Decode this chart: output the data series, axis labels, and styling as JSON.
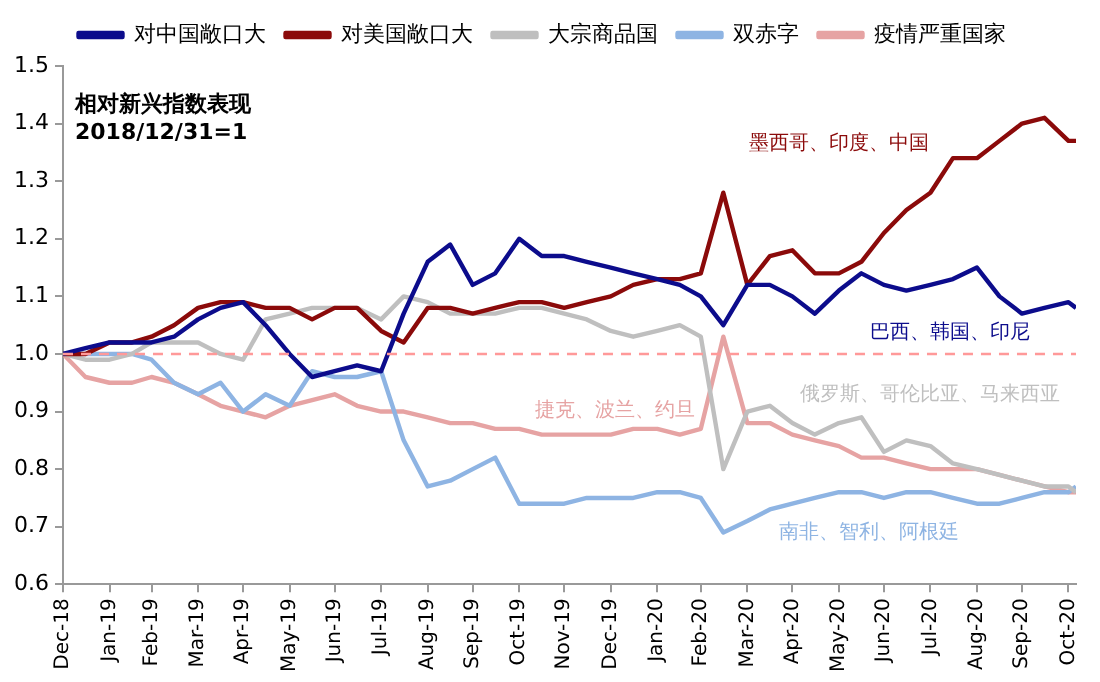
{
  "chart_data": {
    "type": "line",
    "x": [
      "2018-12-31",
      "2019-01-15",
      "2019-01-31",
      "2019-02-15",
      "2019-02-28",
      "2019-03-15",
      "2019-03-31",
      "2019-04-15",
      "2019-04-30",
      "2019-05-15",
      "2019-05-31",
      "2019-06-15",
      "2019-06-30",
      "2019-07-15",
      "2019-07-31",
      "2019-08-15",
      "2019-08-31",
      "2019-09-15",
      "2019-09-30",
      "2019-10-15",
      "2019-10-31",
      "2019-11-15",
      "2019-11-30",
      "2019-12-15",
      "2019-12-31",
      "2020-01-15",
      "2020-01-31",
      "2020-02-15",
      "2020-02-29",
      "2020-03-15",
      "2020-03-31",
      "2020-04-15",
      "2020-04-30",
      "2020-05-15",
      "2020-05-31",
      "2020-06-15",
      "2020-06-30",
      "2020-07-15",
      "2020-07-31",
      "2020-08-15",
      "2020-08-31",
      "2020-09-15",
      "2020-09-30",
      "2020-10-15",
      "2020-10-31",
      "2020-11-05"
    ],
    "series": [
      {
        "name": "对中国敞口大",
        "color": "#0c0c8c",
        "values": [
          1.0,
          1.01,
          1.02,
          1.02,
          1.02,
          1.03,
          1.06,
          1.08,
          1.09,
          1.05,
          1.0,
          0.96,
          0.97,
          0.98,
          0.97,
          1.07,
          1.16,
          1.19,
          1.12,
          1.14,
          1.2,
          1.17,
          1.17,
          1.16,
          1.15,
          1.14,
          1.13,
          1.12,
          1.1,
          1.05,
          1.12,
          1.12,
          1.1,
          1.07,
          1.11,
          1.14,
          1.12,
          1.11,
          1.12,
          1.13,
          1.15,
          1.1,
          1.07,
          1.08,
          1.09,
          1.08
        ]
      },
      {
        "name": "对美国敞口大",
        "color": "#8b0a0a",
        "values": [
          1.0,
          1.0,
          1.02,
          1.02,
          1.03,
          1.05,
          1.08,
          1.09,
          1.09,
          1.08,
          1.08,
          1.06,
          1.08,
          1.08,
          1.04,
          1.02,
          1.08,
          1.08,
          1.07,
          1.08,
          1.09,
          1.09,
          1.08,
          1.09,
          1.1,
          1.12,
          1.13,
          1.13,
          1.14,
          1.28,
          1.12,
          1.17,
          1.18,
          1.14,
          1.14,
          1.16,
          1.21,
          1.25,
          1.28,
          1.34,
          1.34,
          1.37,
          1.4,
          1.41,
          1.37,
          1.37
        ]
      },
      {
        "name": "大宗商品国",
        "color": "#bfbfbf",
        "values": [
          1.0,
          0.99,
          0.99,
          1.0,
          1.02,
          1.02,
          1.02,
          1.0,
          0.99,
          1.06,
          1.07,
          1.08,
          1.08,
          1.08,
          1.06,
          1.1,
          1.09,
          1.07,
          1.07,
          1.07,
          1.08,
          1.08,
          1.07,
          1.06,
          1.04,
          1.03,
          1.04,
          1.05,
          1.03,
          0.8,
          0.9,
          0.91,
          0.88,
          0.86,
          0.88,
          0.89,
          0.83,
          0.85,
          0.84,
          0.81,
          0.8,
          0.79,
          0.78,
          0.77,
          0.77,
          0.76
        ]
      },
      {
        "name": "双赤字",
        "color": "#8eb4e3",
        "values": [
          1.0,
          1.0,
          1.0,
          1.0,
          0.99,
          0.95,
          0.93,
          0.95,
          0.9,
          0.93,
          0.91,
          0.97,
          0.96,
          0.96,
          0.97,
          0.85,
          0.77,
          0.78,
          0.8,
          0.82,
          0.74,
          0.74,
          0.74,
          0.75,
          0.75,
          0.75,
          0.76,
          0.76,
          0.75,
          0.69,
          0.71,
          0.73,
          0.74,
          0.75,
          0.76,
          0.76,
          0.75,
          0.76,
          0.76,
          0.75,
          0.74,
          0.74,
          0.75,
          0.76,
          0.76,
          0.77
        ]
      },
      {
        "name": "疫情严重国家",
        "color": "#e6a3a3",
        "values": [
          1.0,
          0.96,
          0.95,
          0.95,
          0.96,
          0.95,
          0.93,
          0.91,
          0.9,
          0.89,
          0.91,
          0.92,
          0.93,
          0.91,
          0.9,
          0.9,
          0.89,
          0.88,
          0.88,
          0.87,
          0.87,
          0.86,
          0.86,
          0.86,
          0.86,
          0.87,
          0.87,
          0.86,
          0.87,
          1.03,
          0.88,
          0.88,
          0.86,
          0.85,
          0.84,
          0.82,
          0.82,
          0.81,
          0.8,
          0.8,
          0.8,
          0.79,
          0.78,
          0.77,
          0.76,
          0.76
        ]
      }
    ],
    "xlim": [
      "2018-12-31",
      "2020-11-05"
    ],
    "xticks": [
      {
        "value": "2018-12-31",
        "label": "Dec-18"
      },
      {
        "value": "2019-01-31",
        "label": "Jan-19"
      },
      {
        "value": "2019-02-28",
        "label": "Feb-19"
      },
      {
        "value": "2019-03-31",
        "label": "Mar-19"
      },
      {
        "value": "2019-04-30",
        "label": "Apr-19"
      },
      {
        "value": "2019-05-31",
        "label": "May-19"
      },
      {
        "value": "2019-06-30",
        "label": "Jun-19"
      },
      {
        "value": "2019-07-31",
        "label": "Jul-19"
      },
      {
        "value": "2019-08-31",
        "label": "Aug-19"
      },
      {
        "value": "2019-09-30",
        "label": "Sep-19"
      },
      {
        "value": "2019-10-31",
        "label": "Oct-19"
      },
      {
        "value": "2019-11-30",
        "label": "Nov-19"
      },
      {
        "value": "2019-12-31",
        "label": "Dec-19"
      },
      {
        "value": "2020-01-31",
        "label": "Jan-20"
      },
      {
        "value": "2020-02-29",
        "label": "Feb-20"
      },
      {
        "value": "2020-03-31",
        "label": "Mar-20"
      },
      {
        "value": "2020-04-30",
        "label": "Apr-20"
      },
      {
        "value": "2020-05-31",
        "label": "May-20"
      },
      {
        "value": "2020-06-30",
        "label": "Jun-20"
      },
      {
        "value": "2020-07-31",
        "label": "Jul-20"
      },
      {
        "value": "2020-08-31",
        "label": "Aug-20"
      },
      {
        "value": "2020-09-30",
        "label": "Sep-20"
      },
      {
        "value": "2020-10-31",
        "label": "Oct-20"
      }
    ],
    "ylim": [
      0.6,
      1.5
    ],
    "yticks": [
      0.6,
      0.7,
      0.8,
      0.9,
      {
        "value": 1,
        "label": "1.0"
      },
      1.1,
      1.2,
      1.3,
      1.4,
      1.5
    ],
    "ref_lines": [
      {
        "axis": "y",
        "value": 1,
        "color": "#ff9999",
        "line_style": "dashed"
      }
    ],
    "annotations": [
      "相对新兴指数表现",
      "2018/12/31=1",
      "墨西哥、印度、中国",
      "巴西、韩国、印尼",
      "俄罗斯、哥伦比亚、马来西亚",
      "捷克、波兰、约旦",
      "南非、智利、阿根廷"
    ],
    "grid": false,
    "legend": "top",
    "marker": "none",
    "line_style": "solid"
  }
}
